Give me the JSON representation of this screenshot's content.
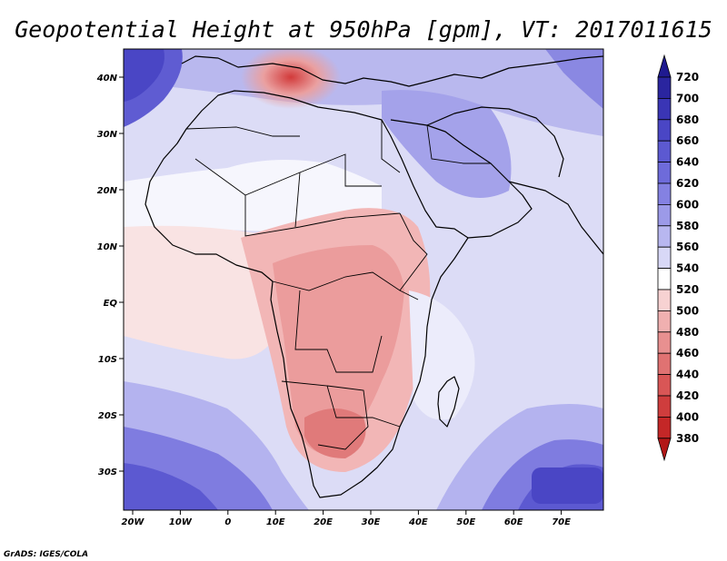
{
  "title": "Geopotential Height at 950hPa [gpm], VT: 2017011615",
  "credit": "GrADS: IGES/COLA",
  "lon_labels": [
    "20W",
    "10W",
    "0",
    "10E",
    "20E",
    "30E",
    "40E",
    "50E",
    "60E",
    "70E"
  ],
  "lat_labels": [
    "40N",
    "30N",
    "20N",
    "10N",
    "EQ",
    "10S",
    "20S",
    "30S"
  ],
  "colorbar": {
    "levels": [
      "720",
      "700",
      "680",
      "660",
      "640",
      "620",
      "600",
      "580",
      "560",
      "540",
      "520",
      "500",
      "480",
      "460",
      "440",
      "420",
      "400",
      "380"
    ],
    "colors_top_to_bottom": [
      "#1f1a90",
      "#2a259f",
      "#3a35b5",
      "#4a46c5",
      "#5c59d1",
      "#6e6bda",
      "#8481e2",
      "#9c9ae8",
      "#b8b7f0",
      "#d8d8f7",
      "#ffffff",
      "#f7d2d2",
      "#f0b0b0",
      "#e89090",
      "#e07272",
      "#d95656",
      "#cf3d3d",
      "#c42727",
      "#b21717"
    ]
  }
}
